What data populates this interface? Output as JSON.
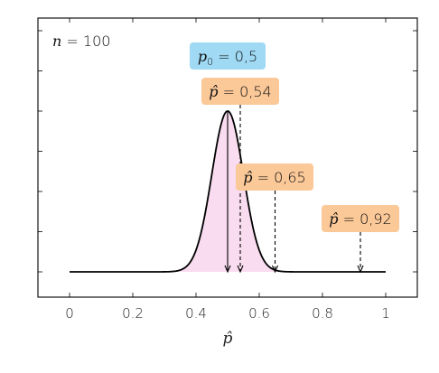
{
  "chart_data": {
    "type": "line",
    "title": "",
    "xlabel": "p̂",
    "ylabel": "",
    "xlim": [
      -0.1,
      1.1
    ],
    "x_ticks": [
      0,
      0.2,
      0.4,
      0.6,
      0.8,
      1
    ],
    "x_tick_labels": [
      "0",
      "0.2",
      "0.4",
      "0.6",
      "0.8",
      "1"
    ],
    "y_tick_count": 7,
    "grid": false,
    "annotation": {
      "var": "n",
      "value": "100",
      "position_word": "top-left"
    },
    "series": [
      {
        "kind": "sampling-distribution",
        "mean": 0.5,
        "n": 100,
        "x_range": [
          0,
          1
        ],
        "stroke": "#000000",
        "shade_range": [
          0.3,
          0.7
        ],
        "shade_color": "#f9dcef"
      }
    ],
    "reference_lines": [
      {
        "name": "p0",
        "x": 0.5,
        "label_var": "p",
        "label_sub": "0",
        "label_value": "0,5",
        "box_color": "#9fd9f3",
        "style": "solid"
      },
      {
        "name": "phat-054",
        "x": 0.54,
        "label_var": "p̂",
        "label_value": "0,54",
        "box_color": "#fbc898",
        "style": "dashed"
      },
      {
        "name": "phat-065",
        "x": 0.65,
        "label_var": "p̂",
        "label_value": "0,65",
        "box_color": "#fbc898",
        "style": "dashed"
      },
      {
        "name": "phat-092",
        "x": 0.92,
        "label_var": "p̂",
        "label_value": "0,92",
        "box_color": "#fbc898",
        "style": "dashed"
      }
    ]
  }
}
